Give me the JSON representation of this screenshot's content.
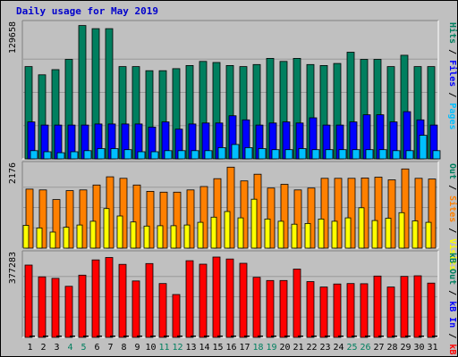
{
  "title": "Daily usage for May 2019",
  "colors": {
    "background": "#c0c0c0",
    "title": "#0000cc",
    "hits": "#007f5f",
    "files": "#0000ff",
    "pages": "#00bfff",
    "visits": "#ff8000",
    "sites": "#ffff00",
    "kbf": "#ff0000",
    "kbin": "#0000ff",
    "kbout": "#007f5f"
  },
  "chart_data": {
    "type": "bar",
    "x": [
      "1",
      "2",
      "3",
      "4",
      "5",
      "6",
      "7",
      "8",
      "9",
      "10",
      "11",
      "12",
      "13",
      "14",
      "15",
      "16",
      "17",
      "18",
      "19",
      "20",
      "21",
      "22",
      "23",
      "24",
      "25",
      "26",
      "27",
      "28",
      "29",
      "30",
      "31"
    ],
    "weekend_days": [
      "4",
      "5",
      "11",
      "12",
      "18",
      "19",
      "25",
      "26"
    ],
    "panels": [
      {
        "id": "top",
        "ymax_label": "129658",
        "ymax": 129658,
        "legend": [
          "Pages",
          "/",
          "Files",
          "/",
          "Hits"
        ],
        "legend_colors": [
          "#00bfff",
          "#000000",
          "#0000ff",
          "#000000",
          "#007f5f"
        ],
        "series": [
          {
            "name": "Hits",
            "color": "#007f5f",
            "values": [
              90000,
              82000,
              87000,
              97000,
              130000,
              127000,
              127000,
              90000,
              90000,
              86000,
              86000,
              88000,
              91000,
              95000,
              94000,
              91000,
              90000,
              92000,
              98000,
              95000,
              98000,
              92000,
              91000,
              93000,
              104000,
              97000,
              97000,
              90000,
              101000,
              90000,
              90000
            ]
          },
          {
            "name": "Files",
            "color": "#0000ff",
            "values": [
              36000,
              33000,
              33000,
              33000,
              33000,
              34000,
              34000,
              34000,
              34000,
              31000,
              36000,
              29000,
              34000,
              35000,
              35000,
              42000,
              38000,
              33000,
              35000,
              36000,
              35000,
              40000,
              33000,
              33000,
              36000,
              43000,
              43000,
              36000,
              46000,
              38000,
              33000
            ]
          },
          {
            "name": "Pages",
            "color": "#00bfff",
            "values": [
              8000,
              7000,
              6000,
              7000,
              8000,
              10000,
              10000,
              9000,
              7000,
              7000,
              8000,
              8000,
              8000,
              8000,
              11000,
              14000,
              11000,
              10000,
              9000,
              9000,
              10000,
              9000,
              9000,
              9000,
              9000,
              9000,
              9000,
              8000,
              8000,
              23000,
              8000
            ]
          }
        ]
      },
      {
        "id": "middle",
        "ymax_label": "2176",
        "ymax": 2176,
        "legend": [
          "Visits",
          "/",
          "Sites",
          "/",
          "Out"
        ],
        "legend_colors": [
          "#ffff00",
          "#000000",
          "#ff8000",
          "#000000",
          "#007f5f"
        ],
        "series": [
          {
            "name": "Sites",
            "color": "#ff8000",
            "values": [
              1580,
              1560,
              1300,
              1540,
              1560,
              1690,
              1910,
              1870,
              1690,
              1520,
              1500,
              1500,
              1560,
              1650,
              1860,
              2170,
              1800,
              1980,
              1610,
              1710,
              1560,
              1610,
              1870,
              1870,
              1870,
              1880,
              1900,
              1830,
              2120,
              1870,
              1850
            ]
          },
          {
            "name": "Visits",
            "color": "#ffff00",
            "values": [
              610,
              540,
              430,
              560,
              620,
              720,
              1060,
              860,
              700,
              590,
              600,
              600,
              620,
              690,
              830,
              980,
              810,
              1310,
              780,
              720,
              640,
              660,
              780,
              720,
              810,
              1080,
              740,
              800,
              950,
              730,
              690
            ]
          }
        ]
      },
      {
        "id": "bottom",
        "ymax_label": "377283",
        "ymax": 377283,
        "legend": [
          "kB F",
          "/",
          "kB In",
          "/",
          "kB Out"
        ],
        "legend_colors": [
          "#ff0000",
          "#000000",
          "#0000ff",
          "#000000",
          "#007f5f"
        ],
        "series": [
          {
            "name": "kB F",
            "color": "#ff0000",
            "values": [
              336000,
              281000,
              274000,
              237000,
              289000,
              360000,
              371000,
              339000,
              262000,
              343000,
              250000,
              199000,
              356000,
              340000,
              373000,
              364000,
              344000,
              279000,
              264000,
              264000,
              317000,
              259000,
              234000,
              248000,
              250000,
              249000,
              285000,
              234000,
              283000,
              286000,
              252000
            ]
          }
        ]
      }
    ]
  }
}
